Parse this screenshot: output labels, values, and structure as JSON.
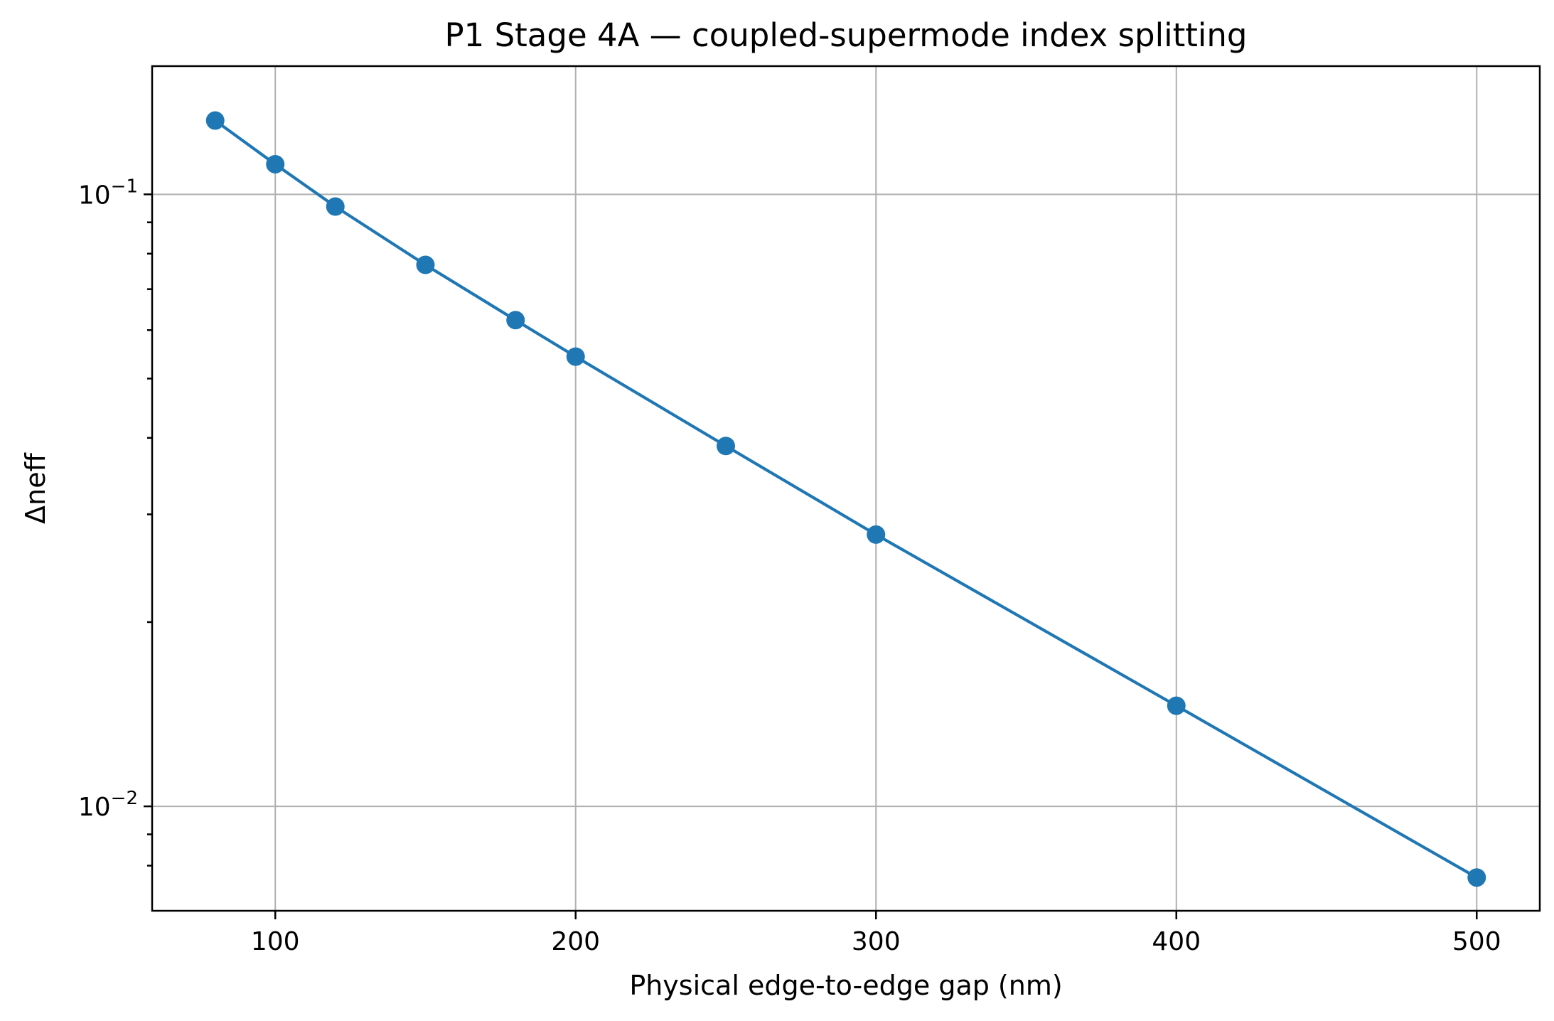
{
  "chart_data": {
    "type": "line",
    "title": "P1 Stage 4A — coupled-supermode index splitting",
    "xlabel": "Physical edge-to-edge gap (nm)",
    "ylabel": "Δneff",
    "xlim": [
      59,
      521
    ],
    "ylim": [
      0.00675,
      0.162
    ],
    "yscale": "log",
    "grid": true,
    "x_ticks": [
      {
        "value": 100,
        "label": "100"
      },
      {
        "value": 200,
        "label": "200"
      },
      {
        "value": 300,
        "label": "300"
      },
      {
        "value": 400,
        "label": "400"
      },
      {
        "value": 500,
        "label": "500"
      }
    ],
    "y_major_ticks": [
      {
        "value": 0.1,
        "base": "10",
        "exp": "−1"
      },
      {
        "value": 0.01,
        "base": "10",
        "exp": "−2"
      }
    ],
    "y_minor_ticks": [
      0.008,
      0.009,
      0.02,
      0.03,
      0.04,
      0.05,
      0.06,
      0.07,
      0.08,
      0.09
    ],
    "series": [
      {
        "color": "#1f77b4",
        "marker": "circle",
        "x": [
          80,
          100,
          120,
          150,
          180,
          200,
          250,
          300,
          400,
          500
        ],
        "y": [
          0.132,
          0.112,
          0.0955,
          0.0767,
          0.0623,
          0.0543,
          0.0388,
          0.0278,
          0.0146,
          0.00765
        ]
      }
    ]
  }
}
